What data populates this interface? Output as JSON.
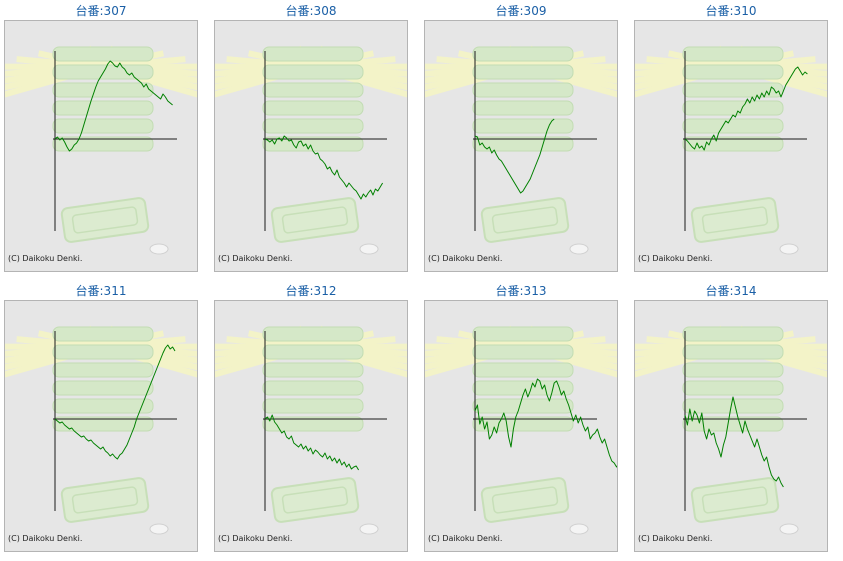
{
  "copyright": "(C) Daikoku Denki.",
  "colors": {
    "line": "#008000",
    "axis": "#1a1a1a",
    "title": "#1a5fa6",
    "panel": "#e6e6e6"
  },
  "chart_data": [
    {
      "type": "line",
      "title": "台番:307",
      "y": [
        0,
        2,
        -1,
        1,
        -3,
        -8,
        -12,
        -10,
        -6,
        -4,
        0,
        6,
        14,
        22,
        30,
        38,
        45,
        52,
        58,
        62,
        66,
        70,
        75,
        78,
        76,
        73,
        72,
        76,
        72,
        70,
        66,
        64,
        66,
        62,
        60,
        58,
        56,
        52,
        55,
        50,
        48,
        46,
        44,
        42,
        40,
        45,
        42,
        38,
        36,
        34
      ]
    },
    {
      "type": "line",
      "title": "台番:308",
      "y": [
        0,
        -1,
        -3,
        -1,
        -5,
        0,
        1,
        -2,
        3,
        1,
        -2,
        -1,
        -6,
        -9,
        -3,
        -2,
        -7,
        -5,
        -10,
        -6,
        -12,
        -15,
        -14,
        -20,
        -22,
        -25,
        -30,
        -28,
        -33,
        -36,
        -31,
        -38,
        -41,
        -44,
        -48,
        -44,
        -47,
        -50,
        -52,
        -56,
        -60,
        -55,
        -58,
        -54,
        -51,
        -56,
        -50,
        -52,
        -48,
        -44
      ]
    },
    {
      "type": "line",
      "title": "台番:309",
      "y": [
        3,
        2,
        -6,
        -4,
        -8,
        -10,
        -8,
        -14,
        -11,
        -16,
        -20,
        -22,
        -26,
        -30,
        -34,
        -38,
        -42,
        -46,
        -50,
        -54,
        -52,
        -48,
        -44,
        -40,
        -34,
        -28,
        -22,
        -16,
        -8,
        0,
        8,
        14,
        18,
        20
      ]
    },
    {
      "type": "line",
      "title": "台番:310",
      "y": [
        0,
        -2,
        -5,
        -8,
        -10,
        -4,
        -9,
        -7,
        -11,
        -3,
        -6,
        0,
        4,
        -2,
        6,
        10,
        14,
        18,
        16,
        20,
        24,
        22,
        28,
        26,
        32,
        35,
        40,
        36,
        42,
        38,
        44,
        40,
        46,
        42,
        48,
        44,
        52,
        50,
        46,
        48,
        42,
        48,
        54,
        58,
        62,
        66,
        70,
        72,
        68,
        64,
        67,
        65
      ]
    },
    {
      "type": "line",
      "title": "台番:311",
      "y": [
        0,
        -2,
        -4,
        -3,
        -6,
        -8,
        -10,
        -9,
        -12,
        -14,
        -16,
        -18,
        -17,
        -20,
        -22,
        -21,
        -24,
        -26,
        -28,
        -30,
        -28,
        -32,
        -34,
        -37,
        -35,
        -38,
        -40,
        -36,
        -34,
        -30,
        -26,
        -20,
        -14,
        -8,
        0,
        6,
        12,
        18,
        24,
        30,
        36,
        42,
        48,
        54,
        60,
        66,
        71,
        74,
        70,
        72,
        68
      ]
    },
    {
      "type": "line",
      "title": "台番:312",
      "y": [
        0,
        2,
        -2,
        4,
        -3,
        -6,
        -10,
        -14,
        -12,
        -18,
        -20,
        -17,
        -24,
        -26,
        -28,
        -25,
        -30,
        -27,
        -32,
        -29,
        -35,
        -31,
        -33,
        -36,
        -38,
        -34,
        -40,
        -37,
        -42,
        -39,
        -44,
        -40,
        -46,
        -43,
        -48,
        -45,
        -50,
        -48,
        -47,
        -51
      ]
    },
    {
      "type": "line",
      "title": "台番:313",
      "y": [
        8,
        14,
        -5,
        2,
        -10,
        -3,
        -20,
        -16,
        -8,
        -14,
        -4,
        0,
        6,
        -2,
        -18,
        -28,
        -10,
        2,
        8,
        16,
        24,
        30,
        22,
        28,
        36,
        32,
        40,
        38,
        30,
        34,
        24,
        18,
        26,
        36,
        38,
        32,
        24,
        28,
        20,
        14,
        6,
        -2,
        4,
        -4,
        2,
        -6,
        -12,
        -8,
        -20,
        -16,
        -14,
        -10,
        -18,
        -24,
        -20,
        -28,
        -36,
        -42,
        -44,
        -48,
        -44,
        -52,
        -54,
        -50,
        -56
      ]
    },
    {
      "type": "line",
      "title": "台番:314",
      "y": [
        4,
        -6,
        10,
        -2,
        8,
        4,
        -4,
        6,
        -12,
        -20,
        -10,
        -16,
        -14,
        -24,
        -30,
        -38,
        -26,
        -18,
        -4,
        10,
        22,
        12,
        2,
        -6,
        -14,
        -2,
        -10,
        -16,
        -22,
        -28,
        -20,
        -28,
        -36,
        -42,
        -38,
        -48,
        -56,
        -60,
        -62,
        -58,
        -64,
        -68
      ]
    }
  ]
}
